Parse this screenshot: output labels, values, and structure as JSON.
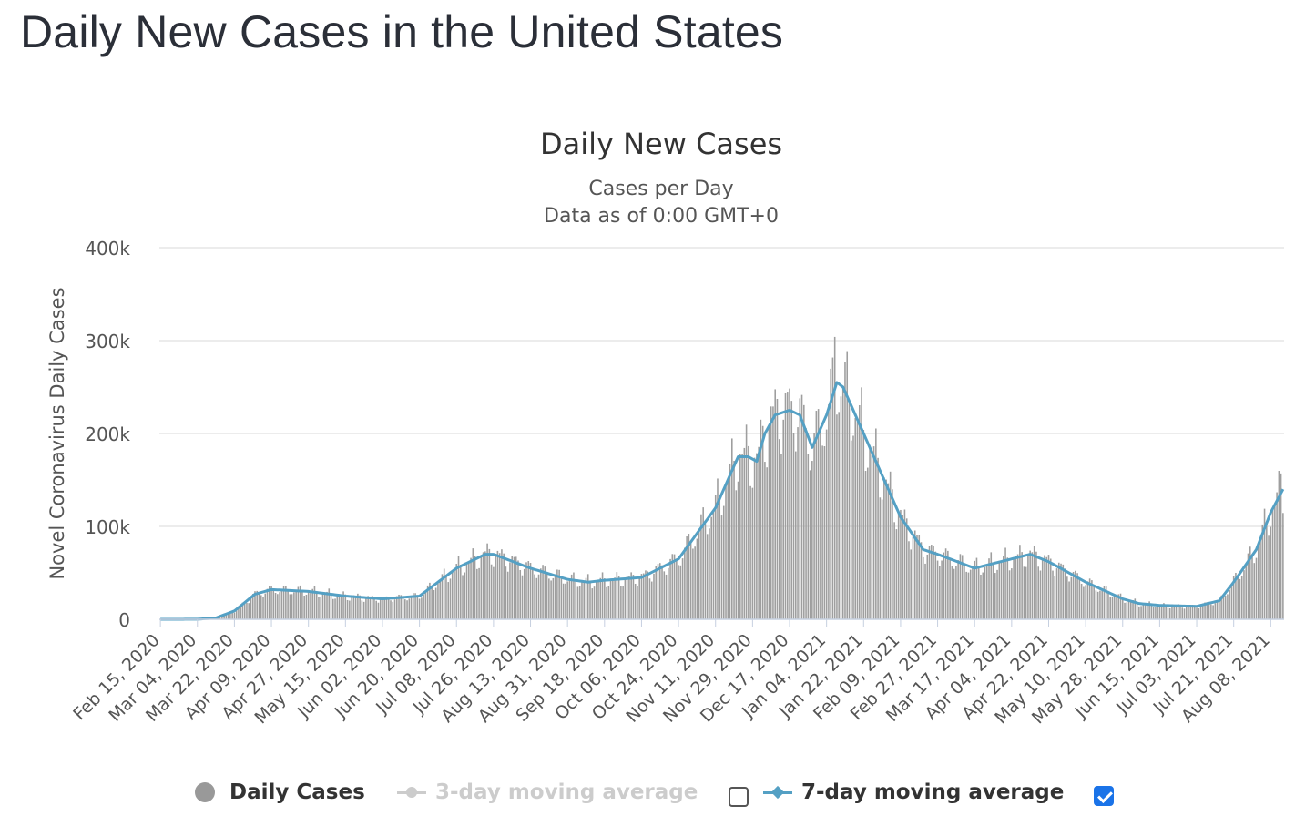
{
  "page": {
    "title": "Daily New Cases in the United States"
  },
  "colors": {
    "bars": "#9e9e9e",
    "ma7": "#54a0c4",
    "grid": "#e6e6e6",
    "axis": "#c6d0e0",
    "checkbox_checked": "#1a73e8"
  },
  "legend": {
    "items": [
      {
        "label": "Daily Cases",
        "icon": "circle-marker-icon",
        "enabled": true
      },
      {
        "label": "3-day moving average",
        "icon": "line-marker-icon",
        "enabled": false,
        "checked": false
      },
      {
        "label": "7-day moving average",
        "icon": "line-diamond-marker-icon",
        "enabled": true,
        "checked": true
      }
    ]
  },
  "chart_data": {
    "type": "bar",
    "title": "Daily New Cases",
    "subtitle": [
      "Cases per Day",
      "Data as of 0:00 GMT+0"
    ],
    "ylabel": "Novel Coronavirus Daily Cases",
    "xlabel": "",
    "ylim": [
      0,
      400000
    ],
    "yticks": [
      0,
      100000,
      200000,
      300000,
      400000
    ],
    "ytick_labels": [
      "0",
      "100k",
      "200k",
      "300k",
      "400k"
    ],
    "grid": true,
    "legend_position": "bottom",
    "x_start": "2020-02-15",
    "x_end": "2021-08-14",
    "x_tick_interval_days": 18,
    "x_tick_labels": [
      "Feb 15, 2020",
      "Mar 04, 2020",
      "Mar 22, 2020",
      "Apr 09, 2020",
      "Apr 27, 2020",
      "May 15, 2020",
      "Jun 02, 2020",
      "Jun 20, 2020",
      "Jul 08, 2020",
      "Jul 26, 2020",
      "Aug 13, 2020",
      "Aug 31, 2020",
      "Sep 18, 2020",
      "Oct 06, 2020",
      "Oct 24, 2020",
      "Nov 11, 2020",
      "Nov 29, 2020",
      "Dec 17, 2020",
      "Jan 04, 2021",
      "Jan 22, 2021",
      "Feb 09, 2021",
      "Feb 27, 2021",
      "Mar 17, 2021",
      "Apr 04, 2021",
      "Apr 22, 2021",
      "May 10, 2021",
      "May 28, 2021",
      "Jun 15, 2021",
      "Jul 03, 2021",
      "Jul 21, 2021",
      "Aug 08, 2021"
    ],
    "series": [
      {
        "name": "Daily Cases",
        "kind": "bar",
        "values_description": "one bar per day; approximate trend values (dates are the reference points; daily values follow the 7-day average with weekly oscillation)",
        "points": [
          [
            "2020-02-15",
            0
          ],
          [
            "2020-03-04",
            100
          ],
          [
            "2020-03-13",
            1500
          ],
          [
            "2020-03-22",
            9000
          ],
          [
            "2020-04-01",
            27000
          ],
          [
            "2020-04-09",
            32000
          ],
          [
            "2020-04-27",
            30000
          ],
          [
            "2020-05-15",
            25000
          ],
          [
            "2020-06-02",
            22000
          ],
          [
            "2020-06-20",
            25000
          ],
          [
            "2020-07-08",
            55000
          ],
          [
            "2020-07-22",
            70000
          ],
          [
            "2020-07-26",
            70000
          ],
          [
            "2020-08-13",
            55000
          ],
          [
            "2020-08-31",
            43000
          ],
          [
            "2020-09-10",
            40000
          ],
          [
            "2020-09-18",
            42000
          ],
          [
            "2020-10-06",
            45000
          ],
          [
            "2020-10-24",
            65000
          ],
          [
            "2020-11-11",
            120000
          ],
          [
            "2020-11-22",
            175000
          ],
          [
            "2020-11-27",
            175000
          ],
          [
            "2020-12-01",
            170000
          ],
          [
            "2020-12-05",
            200000
          ],
          [
            "2020-12-10",
            220000
          ],
          [
            "2020-12-17",
            225000
          ],
          [
            "2020-12-22",
            220000
          ],
          [
            "2020-12-28",
            185000
          ],
          [
            "2021-01-04",
            220000
          ],
          [
            "2021-01-09",
            255000
          ],
          [
            "2021-01-12",
            250000
          ],
          [
            "2021-01-22",
            200000
          ],
          [
            "2021-02-09",
            110000
          ],
          [
            "2021-02-20",
            75000
          ],
          [
            "2021-02-27",
            70000
          ],
          [
            "2021-03-17",
            55000
          ],
          [
            "2021-04-04",
            65000
          ],
          [
            "2021-04-13",
            70000
          ],
          [
            "2021-04-22",
            62000
          ],
          [
            "2021-05-10",
            40000
          ],
          [
            "2021-05-28",
            22000
          ],
          [
            "2021-06-05",
            17000
          ],
          [
            "2021-06-15",
            15000
          ],
          [
            "2021-07-03",
            14000
          ],
          [
            "2021-07-14",
            20000
          ],
          [
            "2021-07-21",
            40000
          ],
          [
            "2021-08-01",
            75000
          ],
          [
            "2021-08-08",
            115000
          ],
          [
            "2021-08-14",
            140000
          ]
        ],
        "peaks": [
          [
            "2021-01-08",
            304000
          ],
          [
            "2021-08-13",
            157000
          ]
        ]
      },
      {
        "name": "7-day moving average",
        "kind": "line",
        "points": [
          [
            "2020-02-15",
            0
          ],
          [
            "2020-03-04",
            100
          ],
          [
            "2020-03-13",
            1500
          ],
          [
            "2020-03-22",
            9000
          ],
          [
            "2020-04-01",
            27000
          ],
          [
            "2020-04-09",
            32000
          ],
          [
            "2020-04-27",
            30000
          ],
          [
            "2020-05-15",
            25000
          ],
          [
            "2020-06-02",
            22000
          ],
          [
            "2020-06-20",
            25000
          ],
          [
            "2020-07-08",
            55000
          ],
          [
            "2020-07-22",
            70000
          ],
          [
            "2020-07-26",
            70000
          ],
          [
            "2020-08-13",
            55000
          ],
          [
            "2020-08-31",
            43000
          ],
          [
            "2020-09-10",
            40000
          ],
          [
            "2020-09-18",
            42000
          ],
          [
            "2020-10-06",
            45000
          ],
          [
            "2020-10-24",
            65000
          ],
          [
            "2020-11-11",
            120000
          ],
          [
            "2020-11-22",
            175000
          ],
          [
            "2020-11-27",
            175000
          ],
          [
            "2020-12-01",
            170000
          ],
          [
            "2020-12-05",
            200000
          ],
          [
            "2020-12-10",
            220000
          ],
          [
            "2020-12-17",
            225000
          ],
          [
            "2020-12-22",
            220000
          ],
          [
            "2020-12-28",
            185000
          ],
          [
            "2021-01-04",
            220000
          ],
          [
            "2021-01-09",
            255000
          ],
          [
            "2021-01-12",
            250000
          ],
          [
            "2021-01-22",
            200000
          ],
          [
            "2021-02-09",
            110000
          ],
          [
            "2021-02-20",
            75000
          ],
          [
            "2021-02-27",
            70000
          ],
          [
            "2021-03-17",
            55000
          ],
          [
            "2021-04-04",
            65000
          ],
          [
            "2021-04-13",
            70000
          ],
          [
            "2021-04-22",
            62000
          ],
          [
            "2021-05-10",
            40000
          ],
          [
            "2021-05-28",
            22000
          ],
          [
            "2021-06-05",
            17000
          ],
          [
            "2021-06-15",
            15000
          ],
          [
            "2021-07-03",
            14000
          ],
          [
            "2021-07-14",
            20000
          ],
          [
            "2021-07-21",
            40000
          ],
          [
            "2021-08-01",
            75000
          ],
          [
            "2021-08-08",
            115000
          ],
          [
            "2021-08-14",
            140000
          ]
        ]
      }
    ]
  }
}
